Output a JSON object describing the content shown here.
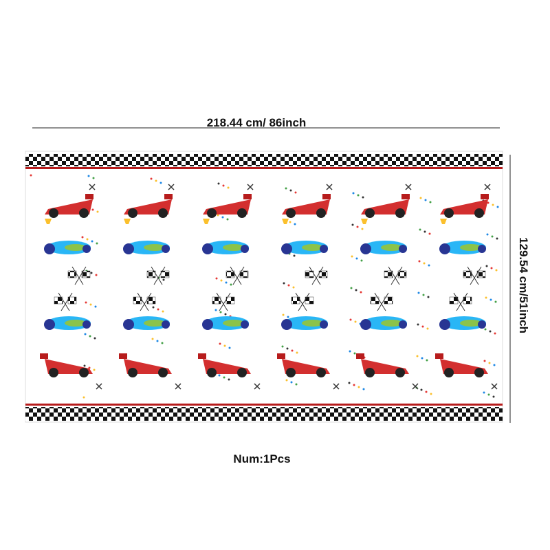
{
  "width_label": "218.44 cm/ 86inch",
  "height_label": "129.54 cm/51inch",
  "quantity_label": "Num:1Pcs"
}
